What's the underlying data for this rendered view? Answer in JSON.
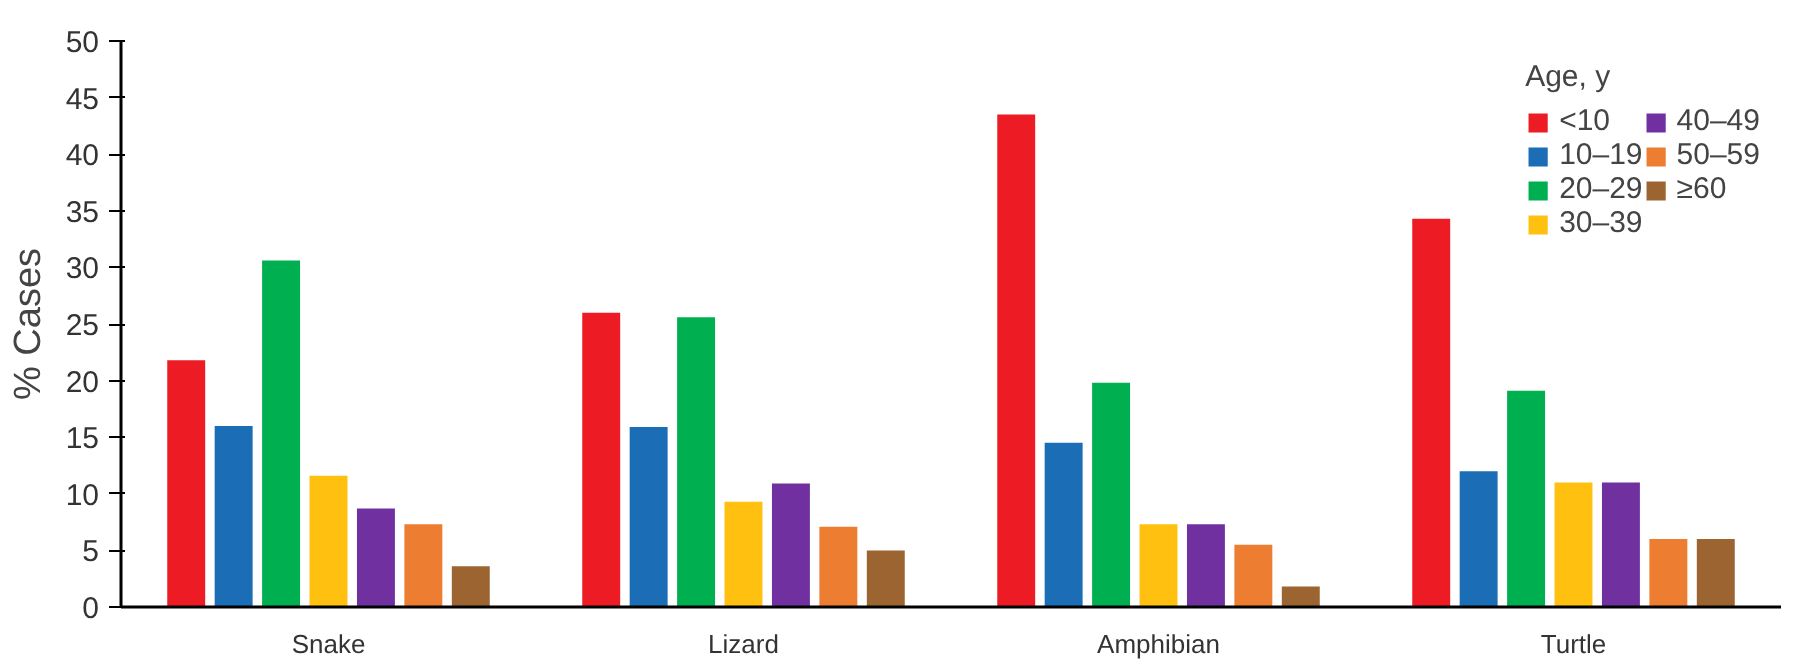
{
  "chart_data": {
    "type": "bar",
    "ylabel": "% Cases",
    "legend_title": "Age, y",
    "legend": "top right",
    "grid": false,
    "categories": [
      "Snake",
      "Lizard",
      "Amphibian",
      "Turtle"
    ],
    "ylim": [
      0,
      50
    ],
    "yticks": [
      0,
      5,
      10,
      15,
      20,
      25,
      30,
      35,
      40,
      45,
      50
    ],
    "series": [
      {
        "name": "<10",
        "color": "#ed1c24",
        "values": [
          21.8,
          26.0,
          43.5,
          34.3
        ]
      },
      {
        "name": "10–19",
        "color": "#1b6db6",
        "values": [
          16.0,
          15.9,
          14.5,
          12.0
        ]
      },
      {
        "name": "20–29",
        "color": "#00b050",
        "values": [
          30.6,
          25.6,
          19.8,
          19.1
        ]
      },
      {
        "name": "30–39",
        "color": "#ffc010",
        "values": [
          11.6,
          9.3,
          7.3,
          11.0
        ]
      },
      {
        "name": "40–49",
        "color": "#7030a0",
        "values": [
          8.7,
          10.9,
          7.3,
          11.0
        ]
      },
      {
        "name": "50–59",
        "color": "#ed7d31",
        "values": [
          7.3,
          7.1,
          5.5,
          6.0
        ]
      },
      {
        "name": "≥60",
        "color": "#9c6430",
        "values": [
          3.6,
          5.0,
          1.8,
          6.0
        ]
      }
    ]
  }
}
